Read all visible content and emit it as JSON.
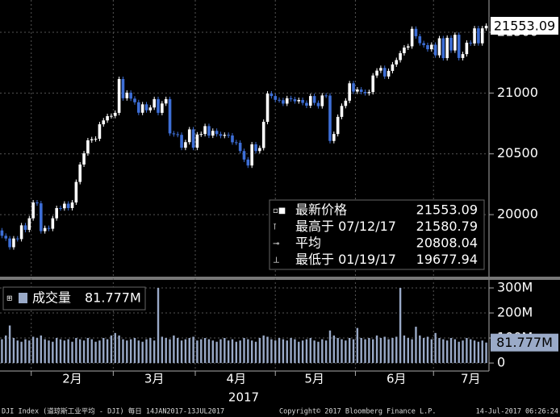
{
  "chart_data": [
    {
      "type": "candlestick",
      "colors": {
        "up": "#ffffff",
        "down": "#3d6ed6"
      },
      "open": [
        19870,
        19826,
        19804,
        19732,
        19804,
        19799,
        19912,
        19875,
        19970,
        20100,
        20093,
        19864,
        19890,
        19884,
        19970,
        20054,
        20052,
        20090,
        20054,
        20100,
        20269,
        20412,
        20504,
        20611,
        20620,
        20624,
        20743,
        20775,
        20810,
        20812,
        20837,
        21115,
        20957,
        21003,
        20954,
        20924,
        20838,
        20907,
        20858,
        20881,
        20950,
        20837,
        20914,
        20950,
        20668,
        20661,
        20656,
        20550,
        20596,
        20701,
        20550,
        20659,
        20663,
        20728,
        20650,
        20689,
        20662,
        20648,
        20656,
        20651,
        20595,
        20591,
        20523,
        20453,
        20404,
        20578,
        20523,
        20548,
        20763,
        20996,
        20975,
        20944,
        20941,
        20913,
        20957,
        20949,
        20932,
        20943,
        20919,
        20896,
        20975,
        20919,
        20892,
        20980,
        20979,
        20606,
        20663,
        20804,
        20894,
        20937,
        21080,
        21012,
        21029,
        21009,
        20999,
        21008,
        21144,
        21184,
        21206,
        21136,
        21182,
        21235,
        21271,
        21328,
        21374,
        21384,
        21528,
        21467,
        21410,
        21394,
        21360,
        21397,
        21310,
        21450,
        21287,
        21454,
        21350,
        21479,
        21288,
        21320,
        21414,
        21408,
        21532,
        21409,
        21532
      ],
      "high": [
        19890,
        19846,
        19824,
        19824,
        19824,
        19932,
        19932,
        19990,
        20120,
        20120,
        20113,
        19910,
        19910,
        19990,
        20074,
        20074,
        20110,
        20110,
        20120,
        20289,
        20432,
        20524,
        20631,
        20640,
        20644,
        20763,
        20795,
        20830,
        20832,
        20857,
        21135,
        21135,
        21023,
        21023,
        20974,
        20944,
        20927,
        20927,
        20901,
        20970,
        20970,
        20934,
        20970,
        20970,
        20688,
        20681,
        20676,
        20616,
        20721,
        20721,
        20679,
        20683,
        20748,
        20748,
        20709,
        20709,
        20682,
        20676,
        20676,
        20671,
        20615,
        20611,
        20543,
        20473,
        20598,
        20598,
        20568,
        20783,
        21016,
        21016,
        20995,
        20964,
        20961,
        20977,
        20977,
        20969,
        20963,
        20963,
        20939,
        20995,
        20995,
        20939,
        21000,
        21000,
        20999,
        20683,
        20824,
        20914,
        20957,
        21100,
        21100,
        21049,
        21049,
        21029,
        21028,
        21164,
        21204,
        21226,
        21226,
        21202,
        21255,
        21291,
        21348,
        21394,
        21404,
        21548,
        21548,
        21487,
        21430,
        21414,
        21417,
        21417,
        21470,
        21470,
        21474,
        21474,
        21499,
        21499,
        21340,
        21434,
        21434,
        21552,
        21552,
        21552,
        21573
      ],
      "low": [
        19806,
        19784,
        19712,
        19712,
        19779,
        19779,
        19855,
        19855,
        19950,
        20073,
        19844,
        19844,
        19864,
        19864,
        19950,
        20032,
        20032,
        20034,
        20034,
        20080,
        20249,
        20392,
        20484,
        20591,
        20600,
        20604,
        20723,
        20755,
        20790,
        20792,
        20817,
        20937,
        20937,
        20934,
        20904,
        20818,
        20818,
        20838,
        20838,
        20861,
        20817,
        20817,
        20894,
        20648,
        20641,
        20636,
        20530,
        20530,
        20576,
        20530,
        20530,
        20639,
        20643,
        20630,
        20630,
        20642,
        20628,
        20628,
        20631,
        20575,
        20571,
        20503,
        20433,
        20384,
        20384,
        20503,
        20503,
        20528,
        20743,
        20955,
        20924,
        20921,
        20893,
        20893,
        20929,
        20912,
        20912,
        20899,
        20876,
        20876,
        20899,
        20872,
        20872,
        20959,
        20586,
        20586,
        20643,
        20784,
        20874,
        20917,
        20992,
        20992,
        20989,
        20979,
        20979,
        20988,
        21124,
        21164,
        21116,
        21116,
        21162,
        21215,
        21251,
        21308,
        21354,
        21364,
        21447,
        21390,
        21374,
        21340,
        21340,
        21290,
        21290,
        21267,
        21267,
        21330,
        21330,
        21268,
        21268,
        21300,
        21388,
        21388,
        21389,
        21389,
        21512
      ],
      "close": [
        19826,
        19804,
        19732,
        19804,
        19799,
        19912,
        19875,
        19970,
        20100,
        20093,
        19864,
        19890,
        19884,
        19970,
        20054,
        20052,
        20090,
        20054,
        20100,
        20269,
        20412,
        20504,
        20611,
        20620,
        20624,
        20743,
        20775,
        20810,
        20812,
        20837,
        21115,
        20957,
        21003,
        20954,
        20924,
        20838,
        20907,
        20858,
        20881,
        20950,
        20837,
        20914,
        20950,
        20668,
        20661,
        20656,
        20550,
        20596,
        20701,
        20550,
        20659,
        20663,
        20728,
        20650,
        20689,
        20662,
        20648,
        20656,
        20651,
        20595,
        20591,
        20523,
        20453,
        20404,
        20578,
        20523,
        20548,
        20763,
        20996,
        20975,
        20944,
        20941,
        20913,
        20957,
        20949,
        20932,
        20943,
        20919,
        20896,
        20975,
        20919,
        20892,
        20980,
        20979,
        20606,
        20663,
        20804,
        20894,
        20937,
        21080,
        21012,
        21029,
        21009,
        20999,
        21008,
        21144,
        21184,
        21206,
        21136,
        21182,
        21235,
        21271,
        21328,
        21374,
        21384,
        21528,
        21467,
        21410,
        21394,
        21360,
        21397,
        21310,
        21450,
        21287,
        21454,
        21350,
        21479,
        21288,
        21320,
        21414,
        21408,
        21532,
        21409,
        21532,
        21553
      ],
      "ylim": [
        19490,
        21765
      ],
      "yticks": [
        20000,
        20500,
        21000,
        21500
      ],
      "grid": true,
      "stats": [
        {
          "label": "最新价格",
          "value": 21553.09
        },
        {
          "label": "最高于 07/12/17",
          "value": 21580.79
        },
        {
          "label": "平均",
          "value": 20808.04
        },
        {
          "label": "最低于 01/19/17",
          "value": 19677.94
        }
      ]
    },
    {
      "type": "bar",
      "categories": [
        null,
        null,
        null,
        null,
        null,
        null,
        null,
        null,
        null,
        null,
        null,
        null,
        null,
        null,
        null,
        null,
        null,
        null,
        "2月",
        null,
        null,
        null,
        null,
        null,
        null,
        null,
        null,
        null,
        null,
        null,
        null,
        null,
        null,
        null,
        null,
        null,
        null,
        null,
        null,
        "3月",
        null,
        null,
        null,
        null,
        null,
        null,
        null,
        null,
        null,
        null,
        null,
        null,
        null,
        null,
        null,
        null,
        null,
        null,
        null,
        null,
        "4月",
        null,
        null,
        null,
        null,
        null,
        null,
        null,
        null,
        null,
        null,
        null,
        null,
        null,
        null,
        null,
        null,
        null,
        null,
        null,
        "5月",
        null,
        null,
        null,
        null,
        null,
        null,
        null,
        null,
        null,
        null,
        null,
        null,
        null,
        null,
        null,
        null,
        null,
        null,
        null,
        null,
        "6月",
        null,
        null,
        null,
        null,
        null,
        null,
        null,
        null,
        null,
        null,
        null,
        null,
        null,
        null,
        null,
        null,
        null,
        null,
        "7月",
        null,
        null,
        null,
        null
      ],
      "xlabel": "2017",
      "series": [
        {
          "name": "成交量",
          "color": "#9aaac8",
          "values": [
            95,
            110,
            150,
            100,
            90,
            85,
            95,
            90,
            105,
            100,
            110,
            95,
            90,
            85,
            100,
            95,
            90,
            95,
            85,
            100,
            95,
            90,
            100,
            95,
            85,
            90,
            100,
            95,
            110,
            120,
            110,
            95,
            90,
            95,
            100,
            90,
            85,
            95,
            100,
            90,
            300,
            105,
            100,
            95,
            110,
            100,
            90,
            95,
            100,
            105,
            90,
            95,
            100,
            95,
            90,
            85,
            95,
            100,
            90,
            95,
            85,
            90,
            100,
            95,
            90,
            85,
            100,
            110,
            105,
            95,
            90,
            100,
            95,
            90,
            100,
            95,
            85,
            90,
            95,
            100,
            90,
            85,
            95,
            90,
            130,
            110,
            100,
            95,
            90,
            100,
            95,
            140,
            100,
            95,
            100,
            95,
            110,
            100,
            105,
            95,
            100,
            105,
            300,
            110,
            100,
            95,
            145,
            110,
            100,
            105,
            95,
            120,
            100,
            95,
            90,
            100,
            95,
            85,
            90,
            100,
            95,
            90,
            85,
            90,
            81.777
          ],
          "last_value_label": "81.777M"
        }
      ],
      "ylim": [
        -32,
        329
      ],
      "yticks": [
        0,
        {
          "value": 100,
          "label": "100M"
        },
        {
          "value": 200,
          "label": "200M"
        },
        {
          "value": 300,
          "label": "300M"
        }
      ],
      "grid": true
    }
  ],
  "footer": {
    "left": "DJI Index (道琼斯工业平均 - DJI)  每日 14JAN2017-13JUL2017",
    "center": "Copyright© 2017 Bloomberg Finance L.P.",
    "right": "14-Jul-2017 06:26:24"
  }
}
